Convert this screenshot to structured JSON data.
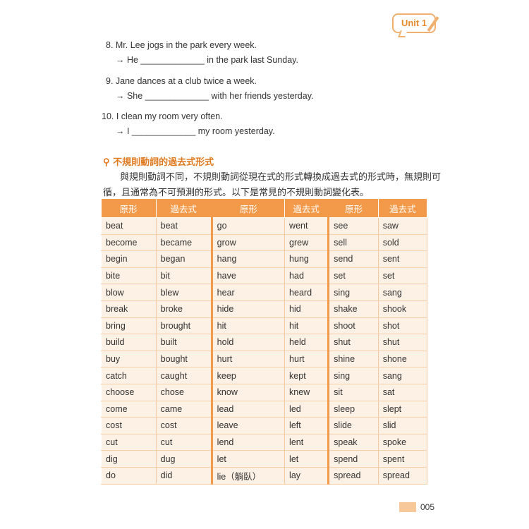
{
  "badge": "Unit 1",
  "exercises": [
    {
      "q": "8. Mr. Lee jogs in the park every week.",
      "a": "→ He _____________ in the park last Sunday."
    },
    {
      "q": "9. Jane dances at a club twice a week.",
      "a": "→ She _____________ with her friends yesterday."
    },
    {
      "q": "10. I clean my room very often.",
      "a": "→ I _____________ my room yesterday."
    }
  ],
  "section_title": "不規則動詞的過去式形式",
  "para1": "與規則動詞不同，不規則動詞從現在式的形式轉換成過去式的形式時，無規則可",
  "para2": "循，且通常為不可預測的形式。以下是常見的不規則動詞變化表。",
  "headers": [
    "原形",
    "過去式",
    "原形",
    "過去式",
    "原形",
    "過去式"
  ],
  "rows": [
    [
      "beat",
      "beat",
      "go",
      "went",
      "see",
      "saw"
    ],
    [
      "become",
      "became",
      "grow",
      "grew",
      "sell",
      "sold"
    ],
    [
      "begin",
      "began",
      "hang",
      "hung",
      "send",
      "sent"
    ],
    [
      "bite",
      "bit",
      "have",
      "had",
      "set",
      "set"
    ],
    [
      "blow",
      "blew",
      "hear",
      "heard",
      "sing",
      "sang"
    ],
    [
      "break",
      "broke",
      "hide",
      "hid",
      "shake",
      "shook"
    ],
    [
      "bring",
      "brought",
      "hit",
      "hit",
      "shoot",
      "shot"
    ],
    [
      "build",
      "built",
      "hold",
      "held",
      "shut",
      "shut"
    ],
    [
      "buy",
      "bought",
      "hurt",
      "hurt",
      "shine",
      "shone"
    ],
    [
      "catch",
      "caught",
      "keep",
      "kept",
      "sing",
      "sang"
    ],
    [
      "choose",
      "chose",
      "know",
      "knew",
      "sit",
      "sat"
    ],
    [
      "come",
      "came",
      "lead",
      "led",
      "sleep",
      "slept"
    ],
    [
      "cost",
      "cost",
      "leave",
      "left",
      "slide",
      "slid"
    ],
    [
      "cut",
      "cut",
      "lend",
      "lent",
      "speak",
      "spoke"
    ],
    [
      "dig",
      "dug",
      "let",
      "let",
      "spend",
      "spent"
    ],
    [
      "do",
      "did",
      "lie（躺臥）",
      "lay",
      "spread",
      "spread"
    ]
  ],
  "page_number": "005"
}
